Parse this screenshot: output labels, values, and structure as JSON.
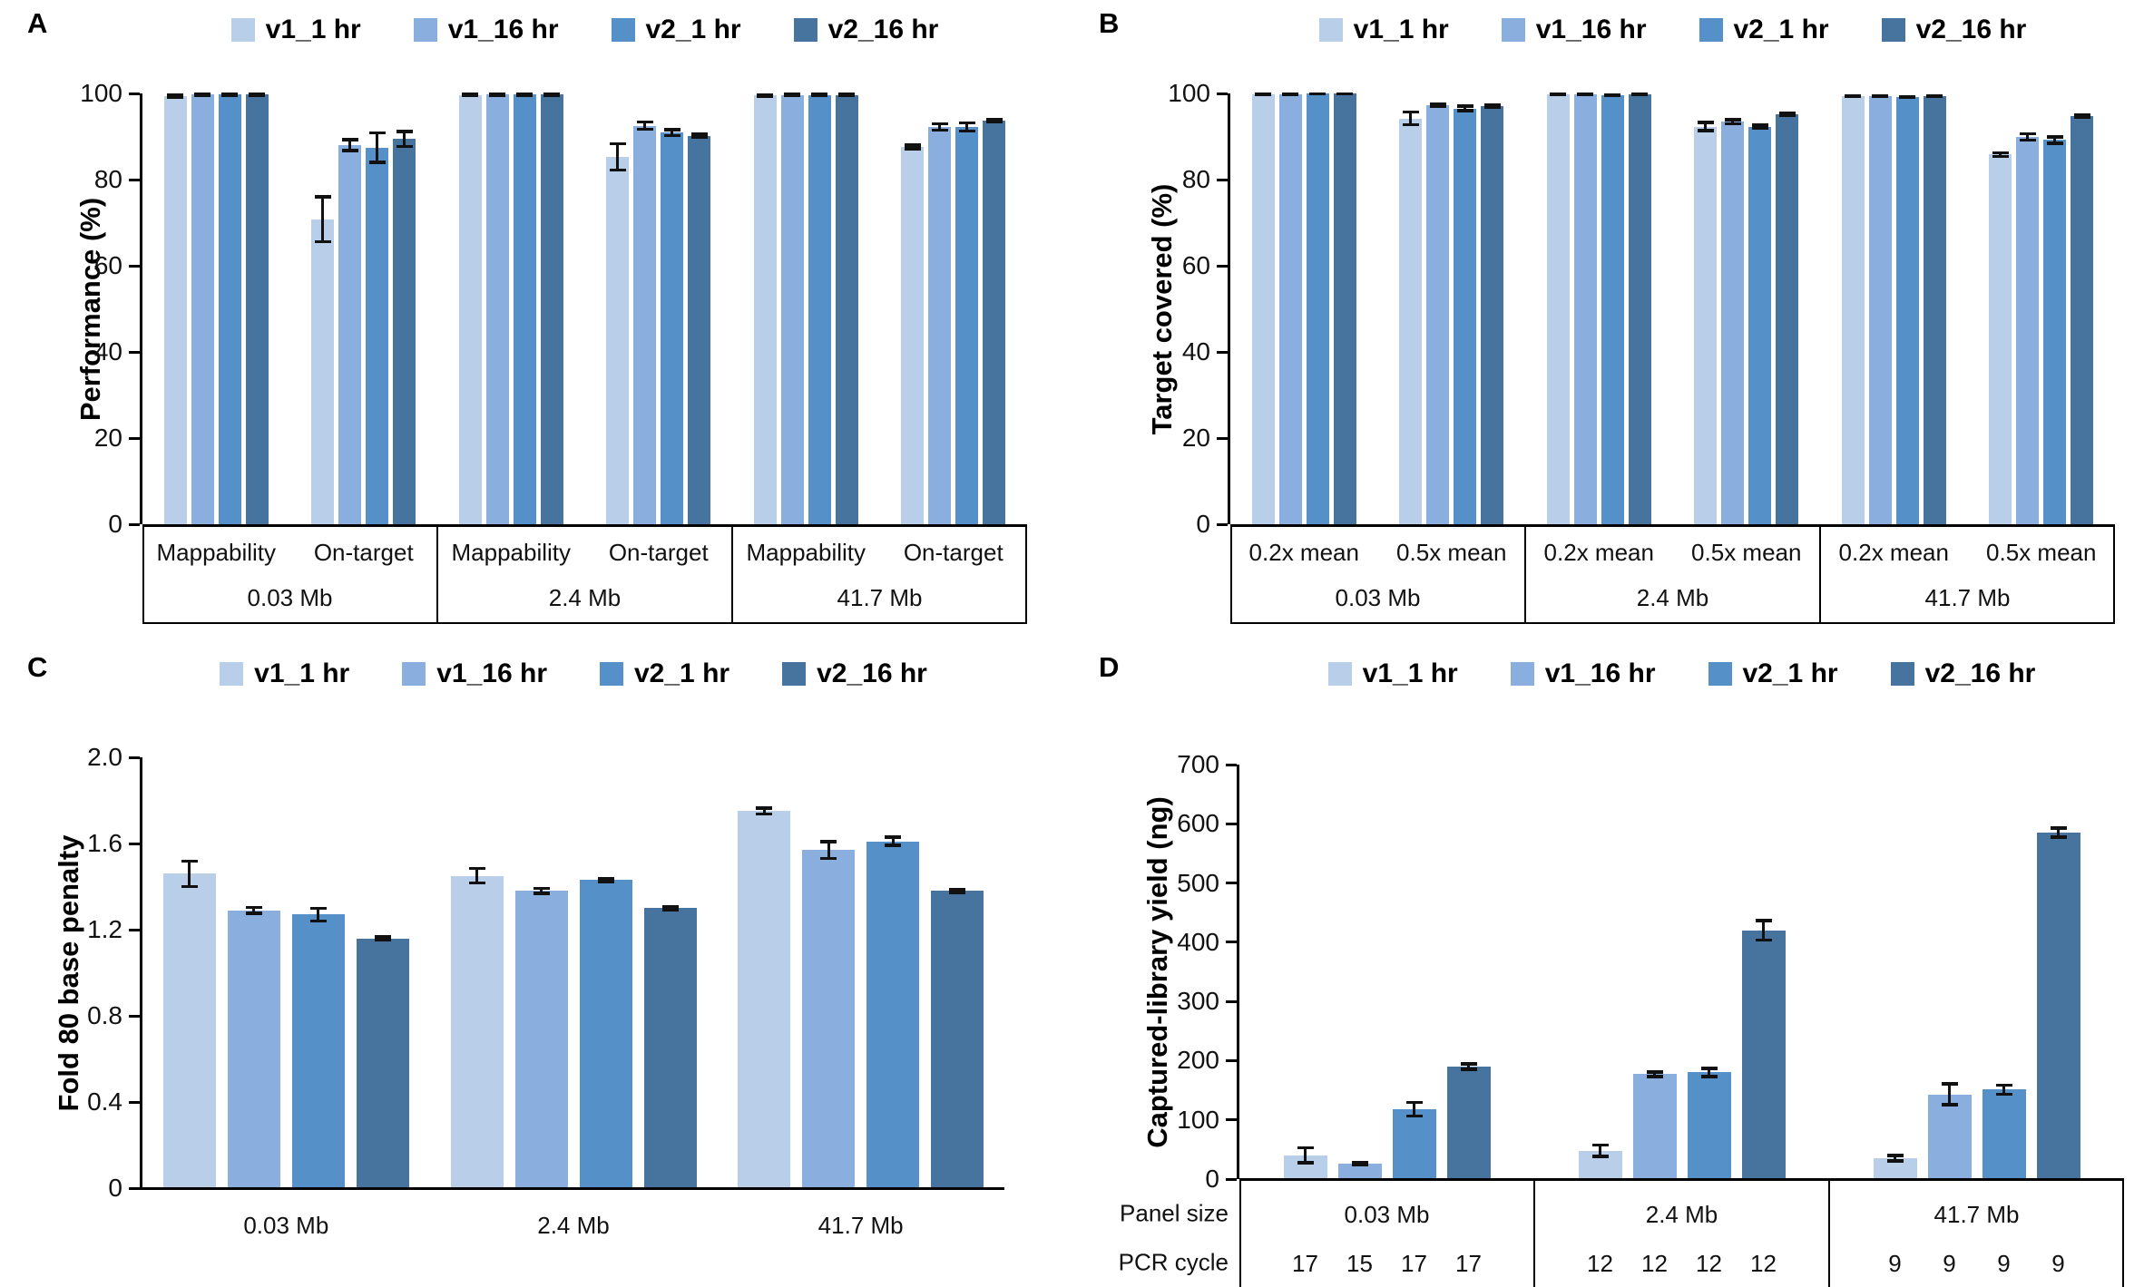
{
  "figure": {
    "background": "#ffffff",
    "axis_color": "#000000",
    "error_bar_color": "#111111"
  },
  "legend": {
    "labels": [
      "v1_1 hr",
      "v1_16 hr",
      "v2_1 hr",
      "v2_16 hr"
    ]
  },
  "series_colors": [
    "#b9cee8",
    "#8aaedd",
    "#5591c8",
    "#47739f"
  ],
  "chart_data": [
    {
      "panel": "A",
      "type": "bar",
      "ylabel": "Performance (%)",
      "ylim": [
        0,
        100
      ],
      "yticks": [
        0,
        20,
        40,
        60,
        80,
        100
      ],
      "ytick_labels": [
        "0",
        "20",
        "40",
        "60",
        "80",
        "100"
      ],
      "legend_entries": [
        "v1_1 hr",
        "v1_16 hr",
        "v2_1 hr",
        "v2_16 hr"
      ],
      "group_labels": [
        "0.03 Mb",
        "2.4 Mb",
        "41.7 Mb"
      ],
      "sub_labels": [
        "Mappability",
        "On-target"
      ],
      "clusters": [
        {
          "group": "0.03 Mb",
          "sub": "Mappability",
          "values": [
            99.4,
            99.7,
            99.7,
            99.7
          ],
          "errors": [
            0.3,
            0.2,
            0.2,
            0.2
          ]
        },
        {
          "group": "0.03 Mb",
          "sub": "On-target",
          "values": [
            70.8,
            88.0,
            87.4,
            89.4
          ],
          "errors": [
            5.3,
            1.3,
            3.5,
            1.8
          ]
        },
        {
          "group": "2.4 Mb",
          "sub": "Mappability",
          "values": [
            99.6,
            99.7,
            99.7,
            99.7
          ],
          "errors": [
            0.2,
            0.2,
            0.2,
            0.2
          ]
        },
        {
          "group": "2.4 Mb",
          "sub": "On-target",
          "values": [
            85.3,
            92.5,
            90.9,
            90.2
          ],
          "errors": [
            3.1,
            0.9,
            0.7,
            0.4
          ]
        },
        {
          "group": "41.7 Mb",
          "sub": "Mappability",
          "values": [
            99.5,
            99.6,
            99.6,
            99.6
          ],
          "errors": [
            0.2,
            0.2,
            0.2,
            0.2
          ]
        },
        {
          "group": "41.7 Mb",
          "sub": "On-target",
          "values": [
            87.6,
            92.2,
            92.2,
            93.6
          ],
          "errors": [
            0.5,
            0.8,
            1.0,
            0.3
          ]
        }
      ]
    },
    {
      "panel": "B",
      "type": "bar",
      "ylabel": "Target covered (%)",
      "ylim": [
        0,
        100
      ],
      "yticks": [
        0,
        20,
        40,
        60,
        80,
        100
      ],
      "ytick_labels": [
        "0",
        "20",
        "40",
        "60",
        "80",
        "100"
      ],
      "legend_entries": [
        "v1_1 hr",
        "v1_16 hr",
        "v2_1 hr",
        "v2_16 hr"
      ],
      "group_labels": [
        "0.03 Mb",
        "2.4 Mb",
        "41.7 Mb"
      ],
      "sub_labels": [
        "0.2x mean",
        "0.5x mean"
      ],
      "clusters": [
        {
          "group": "0.03 Mb",
          "sub": "0.2x mean",
          "values": [
            99.8,
            99.8,
            99.9,
            99.9
          ],
          "errors": [
            0.2,
            0.2,
            0.1,
            0.1
          ]
        },
        {
          "group": "0.03 Mb",
          "sub": "0.5x mean",
          "values": [
            94.2,
            97.2,
            96.5,
            97.0
          ],
          "errors": [
            1.5,
            0.3,
            0.6,
            0.3
          ]
        },
        {
          "group": "2.4 Mb",
          "sub": "0.2x mean",
          "values": [
            99.7,
            99.7,
            99.6,
            99.7
          ],
          "errors": [
            0.1,
            0.1,
            0.1,
            0.1
          ]
        },
        {
          "group": "2.4 Mb",
          "sub": "0.5x mean",
          "values": [
            92.3,
            93.4,
            92.3,
            95.2
          ],
          "errors": [
            1.0,
            0.5,
            0.4,
            0.3
          ]
        },
        {
          "group": "41.7 Mb",
          "sub": "0.2x mean",
          "values": [
            99.3,
            99.4,
            99.2,
            99.3
          ],
          "errors": [
            0.1,
            0.1,
            0.1,
            0.1
          ]
        },
        {
          "group": "41.7 Mb",
          "sub": "0.5x mean",
          "values": [
            85.8,
            89.9,
            89.2,
            94.8
          ],
          "errors": [
            0.5,
            0.8,
            0.8,
            0.3
          ]
        }
      ]
    },
    {
      "panel": "C",
      "type": "bar",
      "ylabel": "Fold 80 base penalty",
      "ylim": [
        0,
        2.0
      ],
      "yticks": [
        0,
        0.4,
        0.8,
        1.2,
        1.6,
        2.0
      ],
      "ytick_labels": [
        "0",
        "0.4",
        "0.8",
        "1.2",
        "1.6",
        "2.0"
      ],
      "legend_entries": [
        "v1_1 hr",
        "v1_16 hr",
        "v2_1 hr",
        "v2_16 hr"
      ],
      "group_labels": [
        "0.03 Mb",
        "2.4 Mb",
        "41.7 Mb"
      ],
      "sub_labels": [],
      "clusters": [
        {
          "group": "0.03 Mb",
          "sub": "",
          "values": [
            1.46,
            1.29,
            1.27,
            1.16
          ],
          "errors": [
            0.06,
            0.015,
            0.03,
            0.008
          ]
        },
        {
          "group": "2.4 Mb",
          "sub": "",
          "values": [
            1.45,
            1.38,
            1.43,
            1.3
          ],
          "errors": [
            0.035,
            0.012,
            0.008,
            0.008
          ]
        },
        {
          "group": "41.7 Mb",
          "sub": "",
          "values": [
            1.75,
            1.57,
            1.61,
            1.38
          ],
          "errors": [
            0.015,
            0.04,
            0.02,
            0.008
          ]
        }
      ]
    },
    {
      "panel": "D",
      "type": "bar",
      "ylabel": "Captured-library yield (ng)",
      "ylim": [
        0,
        700
      ],
      "yticks": [
        0,
        100,
        200,
        300,
        400,
        500,
        600,
        700
      ],
      "ytick_labels": [
        "0",
        "100",
        "200",
        "300",
        "400",
        "500",
        "600",
        "700"
      ],
      "legend_entries": [
        "v1_1 hr",
        "v1_16 hr",
        "v2_1 hr",
        "v2_16 hr"
      ],
      "group_labels": [
        "0.03 Mb",
        "2.4 Mb",
        "41.7 Mb"
      ],
      "sub_labels": [],
      "row_headers": [
        "Panel size",
        "PCR cycle"
      ],
      "pcr_cycles": [
        [
          "17",
          "15",
          "17",
          "17"
        ],
        [
          "12",
          "12",
          "12",
          "12"
        ],
        [
          "9",
          "9",
          "9",
          "9"
        ]
      ],
      "clusters": [
        {
          "group": "0.03 Mb",
          "sub": "",
          "values": [
            40,
            26,
            118,
            190
          ],
          "errors": [
            13,
            3,
            12,
            5
          ]
        },
        {
          "group": "2.4 Mb",
          "sub": "",
          "values": [
            48,
            177,
            180,
            420
          ],
          "errors": [
            10,
            4,
            7,
            17
          ]
        },
        {
          "group": "41.7 Mb",
          "sub": "",
          "values": [
            35,
            143,
            151,
            585
          ],
          "errors": [
            5,
            18,
            8,
            8
          ]
        }
      ]
    }
  ]
}
